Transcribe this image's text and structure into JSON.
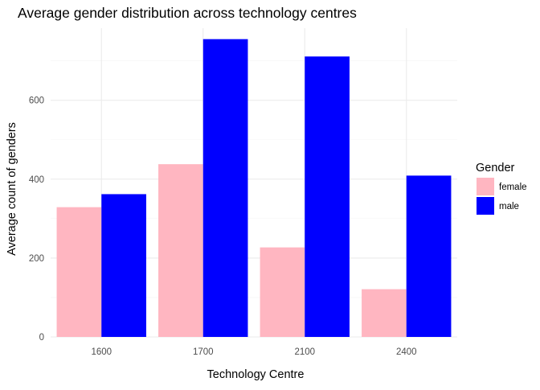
{
  "chart_data": {
    "type": "bar",
    "title": "Average gender distribution across technology centres",
    "xlabel": "Technology Centre",
    "ylabel": "Average count of genders",
    "categories": [
      "1600",
      "1700",
      "2100",
      "2400"
    ],
    "series": [
      {
        "name": "female",
        "color": "#FFB6C1",
        "values": [
          329,
          438,
          227,
          121
        ]
      },
      {
        "name": "male",
        "color": "#0000FF",
        "values": [
          362,
          755,
          711,
          409
        ]
      }
    ],
    "ylim": [
      0,
      755
    ],
    "yticks": [
      0,
      200,
      400,
      600
    ],
    "yticks_labels": [
      "0",
      "200",
      "400",
      "600"
    ],
    "grid": true,
    "legend": {
      "title": "Gender",
      "placement": "right",
      "entries": [
        "female",
        "male"
      ]
    }
  }
}
